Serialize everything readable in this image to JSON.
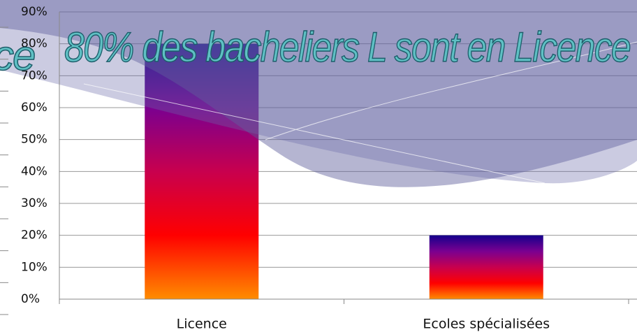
{
  "chart_data": {
    "type": "bar",
    "title": "80% des bacheliers  L sont en Licence",
    "title_fragment": "ce",
    "categories": [
      "Licence",
      "Ecoles spécialisées"
    ],
    "values": [
      80,
      20
    ],
    "gradient": [
      "#ff8c00",
      "#ff0000",
      "#c8004e",
      "#7a0090",
      "#14008c"
    ],
    "ylim": [
      0,
      90
    ],
    "yticks": [
      {
        "value": 0,
        "label": "0%"
      },
      {
        "value": 10,
        "label": "10%"
      },
      {
        "value": 20,
        "label": "20%"
      },
      {
        "value": 30,
        "label": "30%"
      },
      {
        "value": 40,
        "label": "40%"
      },
      {
        "value": 50,
        "label": "50%"
      },
      {
        "value": 60,
        "label": "60%"
      },
      {
        "value": 70,
        "label": "70%"
      },
      {
        "value": 80,
        "label": "80%"
      },
      {
        "value": 90,
        "label": "90%"
      }
    ],
    "grid": true
  }
}
